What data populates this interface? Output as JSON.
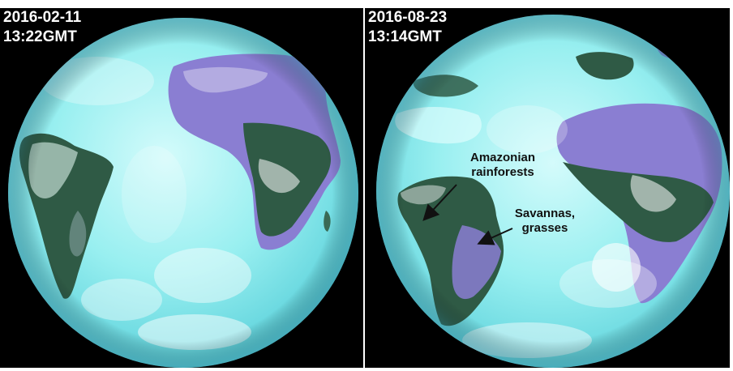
{
  "panels": [
    {
      "date": "2016-02-11",
      "time": "13:22GMT"
    },
    {
      "date": "2016-08-23",
      "time": "13:14GMT"
    }
  ],
  "annotations": {
    "amazon": {
      "line1": "Amazonian",
      "line2": "rainforests"
    },
    "savanna": {
      "line1": "Savannas,",
      "line2": "grasses"
    }
  },
  "colors": {
    "ocean": "#8ff0f0",
    "forest": "#2f5a45",
    "desert": "#8f7fd6",
    "cloud": "#ffffff",
    "space": "#000000"
  }
}
